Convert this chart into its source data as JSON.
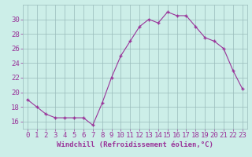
{
  "x": [
    0,
    1,
    2,
    3,
    4,
    5,
    6,
    7,
    8,
    9,
    10,
    11,
    12,
    13,
    14,
    15,
    16,
    17,
    18,
    19,
    20,
    21,
    22,
    23
  ],
  "y": [
    19,
    18,
    17,
    16.5,
    16.5,
    16.5,
    16.5,
    15.5,
    18.5,
    22,
    25,
    27,
    29,
    30,
    29.5,
    31,
    30.5,
    30.5,
    29,
    27.5,
    27,
    26,
    23,
    20.5
  ],
  "line_color": "#993399",
  "marker": "+",
  "bg_color": "#cceee8",
  "grid_color": "#99bbbb",
  "axis_color": "#666699",
  "xlabel": "Windchill (Refroidissement éolien,°C)",
  "ylim": [
    15,
    32
  ],
  "xlim": [
    -0.5,
    23.5
  ],
  "yticks": [
    16,
    18,
    20,
    22,
    24,
    26,
    28,
    30
  ],
  "xticks": [
    0,
    1,
    2,
    3,
    4,
    5,
    6,
    7,
    8,
    9,
    10,
    11,
    12,
    13,
    14,
    15,
    16,
    17,
    18,
    19,
    20,
    21,
    22,
    23
  ],
  "tick_color": "#993399",
  "font_size": 6.5
}
